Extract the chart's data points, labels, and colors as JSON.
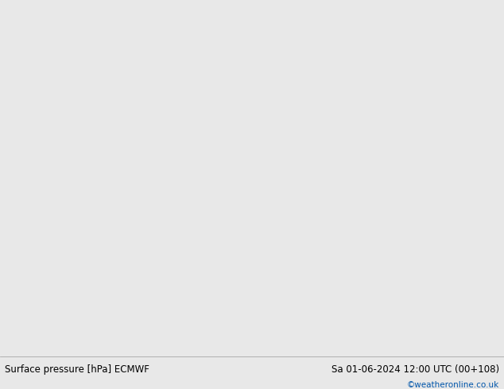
{
  "title_left": "Surface pressure [hPa] ECMWF",
  "title_right": "Sa 01-06-2024 12:00 UTC (00+108)",
  "credit": "©weatheronline.co.uk",
  "bg_ocean": "#d0d0d0",
  "bg_land_green": "#c8e8a0",
  "bg_land_grey": "#a8a8a8",
  "bottom_bg": "#e8e8e8",
  "label_black": "#000000",
  "label_red": "#cc0000",
  "label_blue": "#0000bb",
  "credit_color": "#0055aa",
  "figsize": [
    6.34,
    4.9
  ],
  "dpi": 100,
  "map_extent": [
    -30,
    45,
    25,
    75
  ]
}
